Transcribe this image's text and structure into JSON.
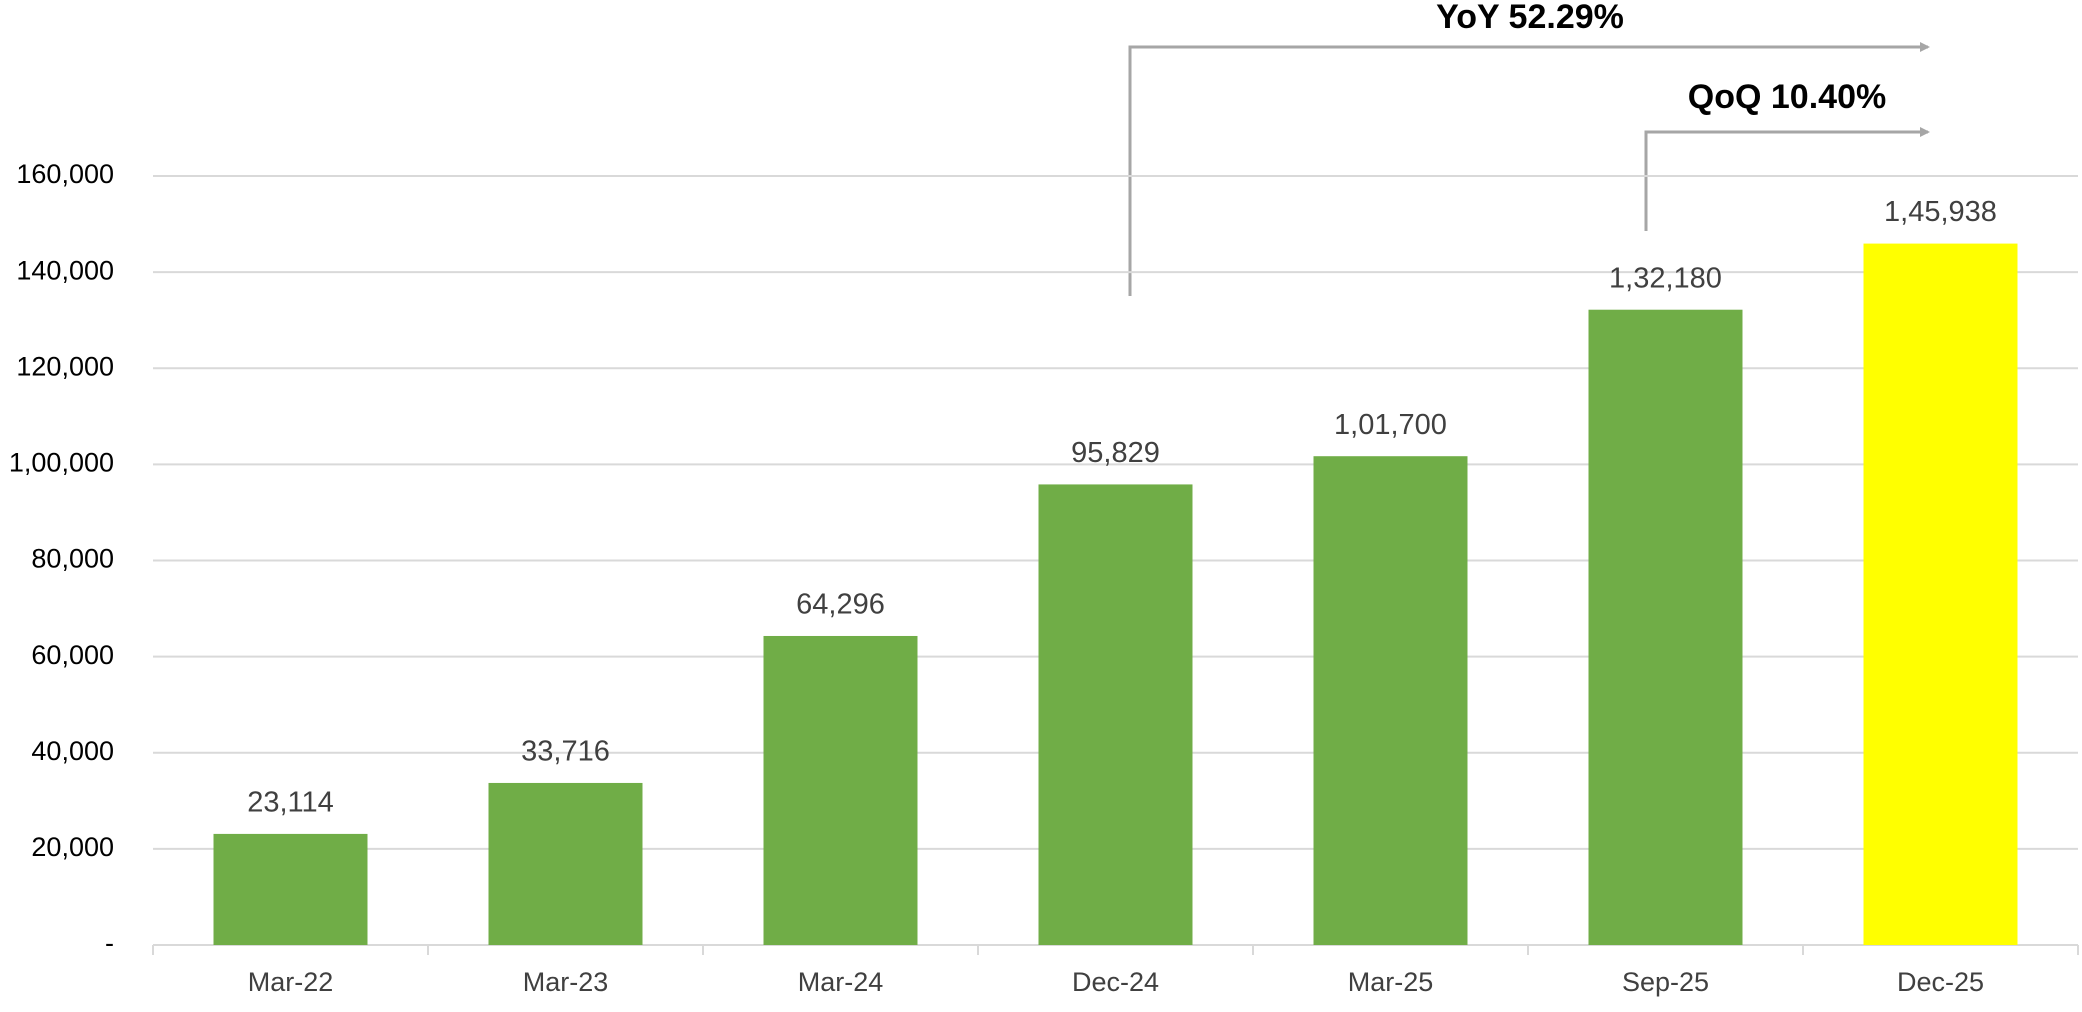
{
  "chart_data": {
    "type": "bar",
    "categories": [
      "Mar-22",
      "Mar-23",
      "Mar-24",
      "Dec-24",
      "Mar-25",
      "Sep-25",
      "Dec-25"
    ],
    "values": [
      23114,
      33716,
      64296,
      95829,
      101700,
      132180,
      145938
    ],
    "value_labels": [
      "23,114",
      "33,716",
      "64,296",
      "95,829",
      "1,01,700",
      "1,32,180",
      "1,45,938"
    ],
    "colors": [
      "#70ad47",
      "#70ad47",
      "#70ad47",
      "#70ad47",
      "#70ad47",
      "#70ad47",
      "#ffff00"
    ],
    "ylim": [
      0,
      160000
    ],
    "yticks": [
      {
        "value": 0,
        "label": "-"
      },
      {
        "value": 20000,
        "label": "20,000"
      },
      {
        "value": 40000,
        "label": "40,000"
      },
      {
        "value": 60000,
        "label": "60,000"
      },
      {
        "value": 80000,
        "label": "80,000"
      },
      {
        "value": 100000,
        "label": "1,00,000"
      },
      {
        "value": 120000,
        "label": "120,000"
      },
      {
        "value": 140000,
        "label": "140,000"
      },
      {
        "value": 160000,
        "label": "160,000"
      }
    ],
    "grid": true,
    "annotations": [
      "YoY 52.29%",
      "QoQ 10.40%"
    ]
  }
}
